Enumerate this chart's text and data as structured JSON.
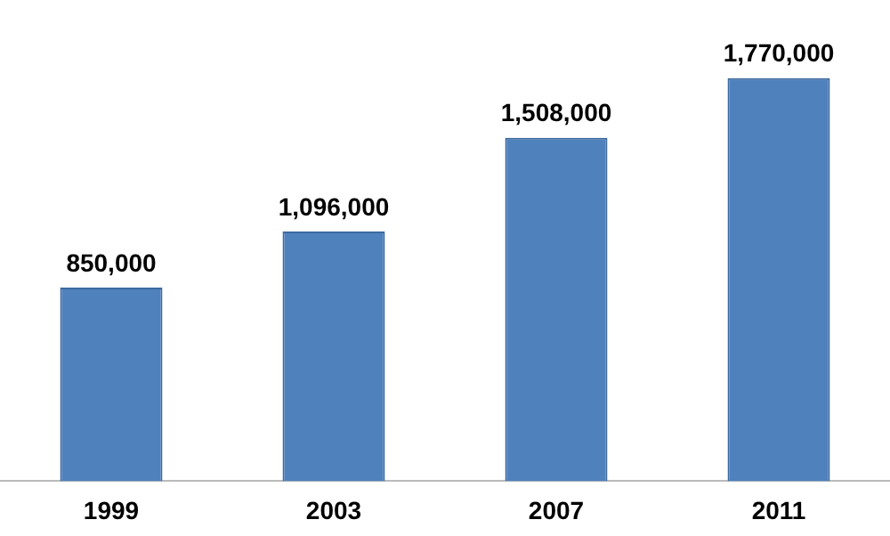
{
  "chart_data": {
    "type": "bar",
    "categories": [
      "1999",
      "2003",
      "2007",
      "2011"
    ],
    "values": [
      850000,
      1096000,
      1508000,
      1770000
    ],
    "color": "#4f81bd",
    "data_labels": true,
    "value_labels": [
      "850,000",
      "1,096,000",
      "1,508,000",
      "1,770,000"
    ],
    "grid": false,
    "legend": false
  }
}
